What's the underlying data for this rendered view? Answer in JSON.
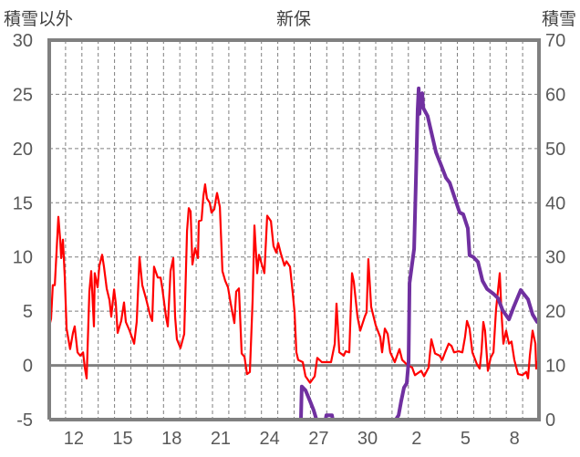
{
  "chart_data": {
    "type": "line",
    "title": "新保",
    "left_axis_label": "積雪以外",
    "right_axis_label": "積雪",
    "x_unit": "days since start of day 11",
    "xlim": [
      0,
      30
    ],
    "ylim_left": [
      -5,
      30
    ],
    "ylim_right": [
      0,
      70
    ],
    "yticks_left": [
      "-5",
      "0",
      "5",
      "10",
      "15",
      "20",
      "25",
      "30"
    ],
    "yticks_right": [
      "0",
      "10",
      "20",
      "30",
      "40",
      "50",
      "60",
      "70"
    ],
    "xtick_labels": [
      {
        "label": "12",
        "x": 1.5
      },
      {
        "label": "15",
        "x": 4.5
      },
      {
        "label": "18",
        "x": 7.5
      },
      {
        "label": "21",
        "x": 10.5
      },
      {
        "label": "24",
        "x": 13.5
      },
      {
        "label": "27",
        "x": 16.5
      },
      {
        "label": "30",
        "x": 19.5
      },
      {
        "label": "2",
        "x": 22.5
      },
      {
        "label": "5",
        "x": 25.5
      },
      {
        "label": "8",
        "x": 28.5
      }
    ],
    "grid": true,
    "series": [
      {
        "name": "積雪以外",
        "axis": "left",
        "color": "#ff0000",
        "points": [
          [
            0,
            3.6
          ],
          [
            0.11,
            4.3
          ],
          [
            0.22,
            7.4
          ],
          [
            0.34,
            7.4
          ],
          [
            0.56,
            13.7
          ],
          [
            0.67,
            11.6
          ],
          [
            0.73,
            9.9
          ],
          [
            0.84,
            11.6
          ],
          [
            0.95,
            8.2
          ],
          [
            1.06,
            3.4
          ],
          [
            1.28,
            1.5
          ],
          [
            1.45,
            3.0
          ],
          [
            1.56,
            3.6
          ],
          [
            1.73,
            1.2
          ],
          [
            1.9,
            0.9
          ],
          [
            2.07,
            1.2
          ],
          [
            2.18,
            -0.2
          ],
          [
            2.29,
            -1.2
          ],
          [
            2.46,
            6.8
          ],
          [
            2.57,
            8.7
          ],
          [
            2.74,
            3.6
          ],
          [
            2.79,
            8.5
          ],
          [
            2.96,
            7.2
          ],
          [
            3.07,
            9.2
          ],
          [
            3.24,
            10.2
          ],
          [
            3.35,
            9.1
          ],
          [
            3.52,
            7.1
          ],
          [
            3.69,
            6.0
          ],
          [
            3.8,
            4.5
          ],
          [
            3.97,
            7.0
          ],
          [
            4.08,
            5.7
          ],
          [
            4.19,
            3.0
          ],
          [
            4.41,
            4.1
          ],
          [
            4.58,
            5.8
          ],
          [
            4.69,
            4.0
          ],
          [
            4.92,
            3.2
          ],
          [
            5.2,
            2.0
          ],
          [
            5.36,
            4.0
          ],
          [
            5.53,
            10.0
          ],
          [
            5.7,
            7.4
          ],
          [
            5.92,
            6.2
          ],
          [
            6.2,
            4.5
          ],
          [
            6.31,
            4.1
          ],
          [
            6.42,
            9.1
          ],
          [
            6.65,
            8.1
          ],
          [
            6.82,
            8.1
          ],
          [
            6.93,
            7.1
          ],
          [
            7.15,
            4.5
          ],
          [
            7.26,
            3.6
          ],
          [
            7.43,
            8.7
          ],
          [
            7.6,
            9.9
          ],
          [
            7.71,
            4.5
          ],
          [
            7.82,
            2.4
          ],
          [
            8.04,
            1.6
          ],
          [
            8.27,
            2.9
          ],
          [
            8.44,
            12.4
          ],
          [
            8.55,
            14.5
          ],
          [
            8.66,
            14.2
          ],
          [
            8.77,
            9.3
          ],
          [
            8.94,
            10.8
          ],
          [
            9.11,
            9.9
          ],
          [
            9.16,
            13.3
          ],
          [
            9.33,
            13.4
          ],
          [
            9.44,
            15.6
          ],
          [
            9.55,
            16.7
          ],
          [
            9.66,
            15.4
          ],
          [
            9.83,
            15.0
          ],
          [
            9.94,
            14.1
          ],
          [
            10.11,
            14.4
          ],
          [
            10.22,
            15.4
          ],
          [
            10.28,
            15.9
          ],
          [
            10.45,
            14.6
          ],
          [
            10.61,
            8.7
          ],
          [
            10.78,
            7.8
          ],
          [
            10.95,
            7.2
          ],
          [
            11.12,
            5.7
          ],
          [
            11.34,
            3.9
          ],
          [
            11.45,
            6.8
          ],
          [
            11.62,
            7.1
          ],
          [
            11.79,
            1.1
          ],
          [
            11.96,
            0.8
          ],
          [
            12.12,
            -0.8
          ],
          [
            12.29,
            -0.6
          ],
          [
            12.46,
            6.0
          ],
          [
            12.57,
            12.9
          ],
          [
            12.74,
            8.5
          ],
          [
            12.85,
            10.2
          ],
          [
            13.02,
            9.3
          ],
          [
            13.18,
            8.5
          ],
          [
            13.35,
            13.8
          ],
          [
            13.58,
            13.3
          ],
          [
            13.74,
            11.0
          ],
          [
            13.91,
            10.4
          ],
          [
            14.02,
            11.3
          ],
          [
            14.19,
            10.3
          ],
          [
            14.41,
            9.2
          ],
          [
            14.53,
            9.6
          ],
          [
            14.75,
            9.1
          ],
          [
            14.92,
            6.6
          ],
          [
            15.03,
            4.9
          ],
          [
            15.14,
            1.2
          ],
          [
            15.25,
            0.5
          ],
          [
            15.53,
            0.3
          ],
          [
            15.7,
            -1.0
          ],
          [
            15.98,
            -1.6
          ],
          [
            16.26,
            -1.0
          ],
          [
            16.42,
            0.7
          ],
          [
            16.7,
            0.3
          ],
          [
            17.26,
            0.3
          ],
          [
            17.49,
            2.0
          ],
          [
            17.6,
            5.7
          ],
          [
            17.77,
            1.2
          ],
          [
            18.04,
            0.9
          ],
          [
            18.16,
            1.3
          ],
          [
            18.38,
            1.2
          ],
          [
            18.55,
            8.5
          ],
          [
            18.66,
            7.7
          ],
          [
            18.88,
            4.5
          ],
          [
            19.05,
            3.2
          ],
          [
            19.33,
            4.5
          ],
          [
            19.44,
            4.9
          ],
          [
            19.55,
            9.8
          ],
          [
            19.72,
            5.4
          ],
          [
            20.0,
            3.7
          ],
          [
            20.28,
            2.6
          ],
          [
            20.39,
            1.2
          ],
          [
            20.56,
            3.4
          ],
          [
            20.73,
            2.9
          ],
          [
            20.89,
            1.2
          ],
          [
            21.17,
            0.3
          ],
          [
            21.45,
            1.5
          ],
          [
            21.62,
            0.5
          ],
          [
            21.9,
            0.1
          ],
          [
            22.23,
            -0.2
          ],
          [
            22.4,
            -0.9
          ],
          [
            22.79,
            -0.5
          ],
          [
            22.96,
            -1.0
          ],
          [
            23.24,
            -0.2
          ],
          [
            23.41,
            2.4
          ],
          [
            23.63,
            1.1
          ],
          [
            23.91,
            0.9
          ],
          [
            24.08,
            0.5
          ],
          [
            24.25,
            1.2
          ],
          [
            24.47,
            2.0
          ],
          [
            24.64,
            1.8
          ],
          [
            24.8,
            1.2
          ],
          [
            25.08,
            1.3
          ],
          [
            25.31,
            1.2
          ],
          [
            25.47,
            2.6
          ],
          [
            25.59,
            4.1
          ],
          [
            25.75,
            3.4
          ],
          [
            25.92,
            1.2
          ],
          [
            26.2,
            0.1
          ],
          [
            26.37,
            -0.3
          ],
          [
            26.48,
            1.3
          ],
          [
            26.59,
            4.0
          ],
          [
            26.7,
            3.2
          ],
          [
            26.87,
            -0.5
          ],
          [
            27.04,
            0.7
          ],
          [
            27.21,
            1.2
          ],
          [
            27.37,
            5.1
          ],
          [
            27.6,
            8.5
          ],
          [
            27.71,
            4.7
          ],
          [
            27.82,
            2.0
          ],
          [
            27.99,
            3.2
          ],
          [
            28.16,
            2.0
          ],
          [
            28.32,
            2.2
          ],
          [
            28.49,
            0.5
          ],
          [
            28.72,
            -0.8
          ],
          [
            28.99,
            -0.9
          ],
          [
            29.22,
            -0.6
          ],
          [
            29.33,
            -1.2
          ],
          [
            29.44,
            0.9
          ],
          [
            29.61,
            3.2
          ],
          [
            29.78,
            2.0
          ],
          [
            29.83,
            -0.3
          ],
          [
            30.0,
            0.7
          ]
        ]
      },
      {
        "name": "積雪",
        "axis": "right",
        "color": "#7030a0",
        "points": [
          [
            0,
            0
          ],
          [
            15.42,
            0
          ],
          [
            15.47,
            6.1
          ],
          [
            15.7,
            5.4
          ],
          [
            15.98,
            3.4
          ],
          [
            16.2,
            1.7
          ],
          [
            16.37,
            0
          ],
          [
            16.93,
            0
          ],
          [
            16.98,
            0.8
          ],
          [
            17.32,
            0.8
          ],
          [
            17.37,
            0
          ],
          [
            21.23,
            0
          ],
          [
            21.4,
            0.8
          ],
          [
            21.56,
            3.4
          ],
          [
            21.73,
            5.9
          ],
          [
            21.9,
            6.7
          ],
          [
            22.01,
            10.6
          ],
          [
            22.07,
            25.2
          ],
          [
            22.35,
            31.5
          ],
          [
            22.46,
            43.7
          ],
          [
            22.57,
            57.2
          ],
          [
            22.63,
            61.1
          ],
          [
            22.68,
            56.4
          ],
          [
            22.74,
            59.7
          ],
          [
            22.85,
            60.2
          ],
          [
            22.91,
            57.5
          ],
          [
            23.18,
            56.0
          ],
          [
            23.69,
            49.3
          ],
          [
            24.02,
            46.8
          ],
          [
            24.3,
            44.6
          ],
          [
            24.53,
            43.7
          ],
          [
            25.14,
            38.2
          ],
          [
            25.36,
            37.9
          ],
          [
            25.64,
            35.3
          ],
          [
            25.75,
            30.3
          ],
          [
            25.98,
            30.0
          ],
          [
            26.26,
            29.1
          ],
          [
            26.54,
            25.6
          ],
          [
            26.82,
            24.1
          ],
          [
            27.21,
            23.2
          ],
          [
            27.49,
            22.4
          ],
          [
            27.77,
            20.2
          ],
          [
            28.16,
            18.5
          ],
          [
            28.44,
            20.7
          ],
          [
            28.88,
            23.9
          ],
          [
            29.33,
            22.2
          ],
          [
            29.61,
            19.4
          ],
          [
            29.89,
            18.0
          ],
          [
            30.0,
            18.0
          ]
        ]
      }
    ],
    "colors": {
      "frame": "#808080",
      "grid": "#7f7f7f",
      "text": "#595959"
    }
  }
}
